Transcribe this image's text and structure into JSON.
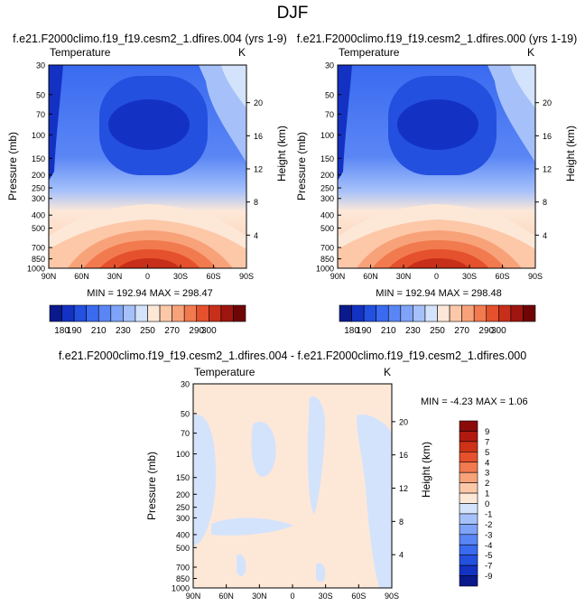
{
  "page": {
    "title": "DJF"
  },
  "colors": {
    "deep_blue": "#1a3fbf",
    "mid_blue": "#3f6be0",
    "light_blue": "#9cbcf5",
    "pale_blue": "#d7e6fb",
    "pale_orange": "#fde3cf",
    "orange": "#f4a07a",
    "red_orange": "#e8572e",
    "dark_red": "#8b0a0a"
  },
  "chart_data": [
    {
      "type": "heatmap",
      "title": "f.e21.F2000climo.f19_f19.cesm2_1.dfires.004 (yrs 1-9)",
      "left_label": "Temperature",
      "right_label": "K",
      "ylabel": "Pressure (mb)",
      "ylabel_right": "Height (km)",
      "x_ticks": [
        "90N",
        "60N",
        "30N",
        "0",
        "30S",
        "60S",
        "90S"
      ],
      "y_ticks": [
        "30",
        "50",
        "70",
        "100",
        "150",
        "200",
        "250",
        "300",
        "400",
        "500",
        "700",
        "850",
        "1000"
      ],
      "y_right_ticks": [
        "20",
        "16",
        "12",
        "8",
        "4"
      ],
      "stats": "MIN = 192.94   MAX = 298.47",
      "colorbar_labels": [
        "180",
        "190",
        "210",
        "230",
        "250",
        "270",
        "290",
        "300"
      ],
      "colorbar_colors": [
        "#0a1a8c",
        "#1332c4",
        "#2450e0",
        "#3a6af0",
        "#5a86f5",
        "#7ea3f8",
        "#a6c1fa",
        "#d4e3fc",
        "#fde8d8",
        "#fcc8a8",
        "#f8a27a",
        "#f27a4f",
        "#e5512c",
        "#c82f1a",
        "#9e150f",
        "#700505"
      ]
    },
    {
      "type": "heatmap",
      "title": "f.e21.F2000climo.f19_f19.cesm2_1.dfires.000 (yrs 1-19)",
      "left_label": "Temperature",
      "right_label": "K",
      "ylabel": "Pressure (mb)",
      "ylabel_right": "Height (km)",
      "x_ticks": [
        "90N",
        "60N",
        "30N",
        "0",
        "30S",
        "60S",
        "90S"
      ],
      "y_ticks": [
        "30",
        "50",
        "70",
        "100",
        "150",
        "200",
        "250",
        "300",
        "400",
        "500",
        "700",
        "850",
        "1000"
      ],
      "y_right_ticks": [
        "20",
        "16",
        "12",
        "8",
        "4"
      ],
      "stats": "MIN = 192.94   MAX = 298.48",
      "colorbar_labels": [
        "180",
        "190",
        "210",
        "230",
        "250",
        "270",
        "290",
        "300"
      ],
      "colorbar_colors": [
        "#0a1a8c",
        "#1332c4",
        "#2450e0",
        "#3a6af0",
        "#5a86f5",
        "#7ea3f8",
        "#a6c1fa",
        "#d4e3fc",
        "#fde8d8",
        "#fcc8a8",
        "#f8a27a",
        "#f27a4f",
        "#e5512c",
        "#c82f1a",
        "#9e150f",
        "#700505"
      ]
    },
    {
      "type": "heatmap",
      "title": "f.e21.F2000climo.f19_f19.cesm2_1.dfires.004 - f.e21.F2000climo.f19_f19.cesm2_1.dfires.000",
      "left_label": "Temperature",
      "right_label": "K",
      "ylabel": "Pressure (mb)",
      "ylabel_right": "Height (km)",
      "x_ticks": [
        "90N",
        "60N",
        "30N",
        "0",
        "30S",
        "60S",
        "90S"
      ],
      "y_ticks": [
        "30",
        "50",
        "70",
        "100",
        "150",
        "200",
        "250",
        "300",
        "400",
        "500",
        "700",
        "850",
        "1000"
      ],
      "y_right_ticks": [
        "20",
        "16",
        "12",
        "8",
        "4"
      ],
      "stats": "MIN = -4.23   MAX =  1.06",
      "colorbar_labels": [
        "9",
        "7",
        "5",
        "4",
        "3",
        "2",
        "1",
        "0",
        "-1",
        "-2",
        "-3",
        "-4",
        "-5",
        "-7",
        "-9"
      ],
      "colorbar_colors": [
        "#8b0a0a",
        "#b01a10",
        "#cf3218",
        "#e5512c",
        "#f27a4f",
        "#f8a27a",
        "#fcc8a8",
        "#fde8d8",
        "#d4e3fc",
        "#a6c1fa",
        "#7ea3f8",
        "#5a86f5",
        "#3a6af0",
        "#2450e0",
        "#1332c4",
        "#0a1a8c"
      ]
    }
  ]
}
